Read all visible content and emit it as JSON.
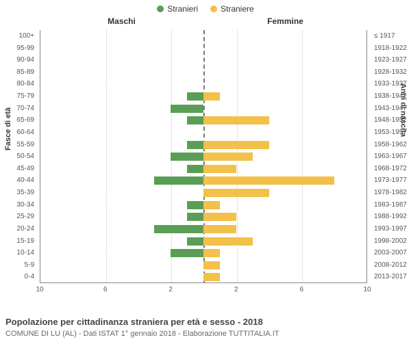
{
  "chart": {
    "type": "population-pyramid",
    "legend": [
      {
        "label": "Stranieri",
        "color": "#5a9e56"
      },
      {
        "label": "Straniere",
        "color": "#f3c04a"
      }
    ],
    "col_left": "Maschi",
    "col_right": "Femmine",
    "axis_left": "Fasce di età",
    "axis_right": "Anni di nascita",
    "title": "Popolazione per cittadinanza straniera per età e sesso - 2018",
    "subtitle": "COMUNE DI LU (AL) - Dati ISTAT 1° gennaio 2018 - Elaborazione TUTTITALIA.IT",
    "xmax": 10,
    "xticks": [
      10,
      6,
      2,
      2,
      6,
      10
    ],
    "bar_color_left": "#5a9e56",
    "bar_color_right": "#f3c04a",
    "background_color": "#ffffff",
    "grid_color": "#cccccc",
    "midline_color": "#777777",
    "label_fontsize": 10,
    "rows": [
      {
        "age": "100+",
        "birth": "≤ 1917",
        "m": 0,
        "f": 0
      },
      {
        "age": "95-99",
        "birth": "1918-1922",
        "m": 0,
        "f": 0
      },
      {
        "age": "90-94",
        "birth": "1923-1927",
        "m": 0,
        "f": 0
      },
      {
        "age": "85-89",
        "birth": "1928-1932",
        "m": 0,
        "f": 0
      },
      {
        "age": "80-84",
        "birth": "1933-1937",
        "m": 0,
        "f": 0
      },
      {
        "age": "75-79",
        "birth": "1938-1942",
        "m": 1,
        "f": 1
      },
      {
        "age": "70-74",
        "birth": "1943-1947",
        "m": 2,
        "f": 0
      },
      {
        "age": "65-69",
        "birth": "1948-1952",
        "m": 1,
        "f": 4
      },
      {
        "age": "60-64",
        "birth": "1953-1957",
        "m": 0,
        "f": 0
      },
      {
        "age": "55-59",
        "birth": "1958-1962",
        "m": 1,
        "f": 4
      },
      {
        "age": "50-54",
        "birth": "1963-1967",
        "m": 2,
        "f": 3
      },
      {
        "age": "45-49",
        "birth": "1968-1972",
        "m": 1,
        "f": 2
      },
      {
        "age": "40-44",
        "birth": "1973-1977",
        "m": 3,
        "f": 8
      },
      {
        "age": "35-39",
        "birth": "1978-1982",
        "m": 0,
        "f": 4
      },
      {
        "age": "30-34",
        "birth": "1983-1987",
        "m": 1,
        "f": 1
      },
      {
        "age": "25-29",
        "birth": "1988-1992",
        "m": 1,
        "f": 2
      },
      {
        "age": "20-24",
        "birth": "1993-1997",
        "m": 3,
        "f": 2
      },
      {
        "age": "15-19",
        "birth": "1998-2002",
        "m": 1,
        "f": 3
      },
      {
        "age": "10-14",
        "birth": "2003-2007",
        "m": 2,
        "f": 1
      },
      {
        "age": "5-9",
        "birth": "2008-2012",
        "m": 0,
        "f": 1
      },
      {
        "age": "0-4",
        "birth": "2013-2017",
        "m": 0,
        "f": 1
      }
    ]
  }
}
